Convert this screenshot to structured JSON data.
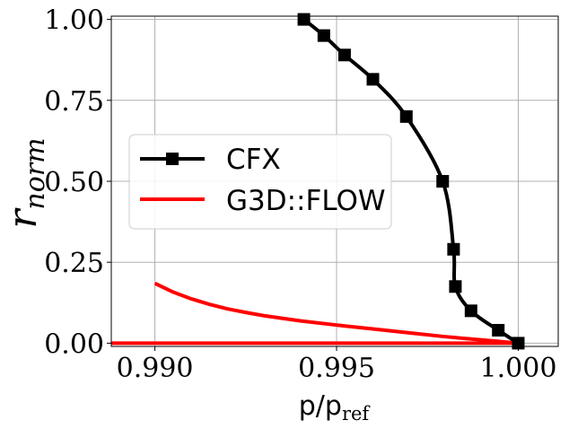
{
  "chart_data": {
    "type": "line",
    "xlabel": {
      "main": "p/p",
      "sub": "ref"
    },
    "ylabel": {
      "main": "r",
      "sub": "norm"
    },
    "xlim": [
      0.9888,
      1.0011
    ],
    "ylim": [
      -0.01,
      1.01
    ],
    "x_ticks": [
      0.99,
      0.995,
      1.0
    ],
    "x_tick_labels": [
      "0.990",
      "0.995",
      "1.000"
    ],
    "y_ticks": [
      0.0,
      0.25,
      0.5,
      0.75,
      1.0
    ],
    "y_tick_labels": [
      "0.00",
      "0.25",
      "0.50",
      "0.75",
      "1.00"
    ],
    "grid": true,
    "legend_position": "center-left",
    "series": [
      {
        "name": "CFX",
        "color": "#000000",
        "marker": "square",
        "x": [
          0.9941,
          0.99465,
          0.99522,
          0.996,
          0.99692,
          0.99792,
          0.99822,
          0.99827,
          0.9987,
          0.99945,
          1.0
        ],
        "y": [
          1.0,
          0.95,
          0.89,
          0.815,
          0.7,
          0.5,
          0.29,
          0.175,
          0.1,
          0.04,
          0.0
        ]
      },
      {
        "name": "G3D::FLOW",
        "color": "#ff0000",
        "marker": "none",
        "x": [
          0.99,
          0.9905,
          0.991,
          0.9915,
          0.992,
          0.9925,
          0.993,
          0.994,
          0.995,
          0.996,
          0.997,
          0.998,
          0.999,
          1.0
        ],
        "y": [
          0.185,
          0.158,
          0.137,
          0.12,
          0.106,
          0.095,
          0.085,
          0.069,
          0.056,
          0.044,
          0.032,
          0.02,
          0.01,
          0.0
        ]
      },
      {
        "name": "",
        "color": "#ff0000",
        "marker": "none",
        "x": [
          0.9888,
          1.0
        ],
        "y": [
          0.0,
          0.0
        ]
      }
    ]
  }
}
